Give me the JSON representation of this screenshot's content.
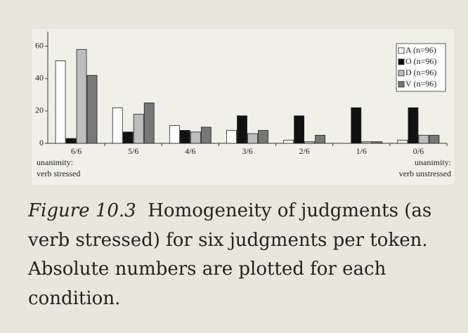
{
  "chart_data": {
    "type": "bar",
    "categories": [
      "6/6",
      "5/6",
      "4/6",
      "3/6",
      "2/6",
      "1/6",
      "0/6"
    ],
    "category_notes": {
      "0": [
        "unanimity:",
        "verb stressed"
      ],
      "6": [
        "unanimity:",
        "verb unstressed"
      ]
    },
    "series": [
      {
        "name": "A (n=96)",
        "color": "#ffffff",
        "values": [
          51,
          22,
          11,
          8,
          2,
          0,
          2
        ]
      },
      {
        "name": "O (n=96)",
        "color": "#111111",
        "values": [
          3,
          7,
          8,
          17,
          17,
          22,
          22
        ]
      },
      {
        "name": "D (n=96)",
        "color": "#bdbdbd",
        "values": [
          58,
          18,
          7,
          6,
          1,
          1,
          5
        ]
      },
      {
        "name": "V (n=96)",
        "color": "#777777",
        "values": [
          42,
          25,
          10,
          8,
          5,
          1,
          5
        ]
      }
    ],
    "ylim": [
      0,
      69
    ],
    "yticks": [
      0,
      20,
      40,
      60
    ],
    "grid": false,
    "legend": "upper right"
  },
  "caption": {
    "label": "Figure 10.3",
    "text": "Homogeneity of judgments (as verb stressed) for six judgments per token. Absolute numbers are plotted for each condition."
  }
}
